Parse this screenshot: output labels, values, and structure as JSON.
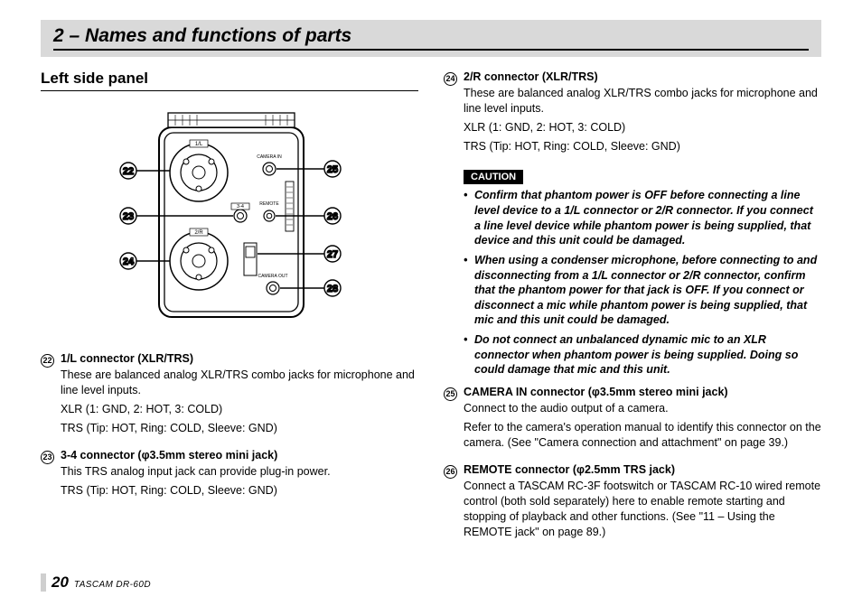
{
  "chapter_title": "2 – Names and functions of parts",
  "left_section_heading": "Left side panel",
  "diagram": {
    "callouts_left": [
      "22",
      "23",
      "24"
    ],
    "callouts_right": [
      "25",
      "26",
      "27",
      "28"
    ],
    "labels": {
      "top": "1/L",
      "mid1": "3-4",
      "mid2": "2/R",
      "camera_in": "CAMERA IN",
      "remote": "REMOTE",
      "camera_out": "CAMERA OUT"
    }
  },
  "left_items": [
    {
      "num": "22",
      "title": "1/L connector (XLR/TRS)",
      "paras": [
        "These are balanced analog XLR/TRS combo jacks for microphone and line level inputs.",
        "XLR (1: GND, 2: HOT, 3: COLD)",
        "TRS (Tip: HOT, Ring: COLD, Sleeve: GND)"
      ]
    },
    {
      "num": "23",
      "title": "3-4 connector (φ3.5mm stereo mini jack)",
      "paras": [
        "This TRS analog input jack can provide plug-in power.",
        "TRS (Tip: HOT, Ring: COLD, Sleeve: GND)"
      ]
    }
  ],
  "right_top_item": {
    "num": "24",
    "title": "2/R connector (XLR/TRS)",
    "paras": [
      "These are balanced analog XLR/TRS combo jacks for microphone and line level inputs.",
      "XLR (1: GND, 2: HOT, 3: COLD)",
      "TRS (Tip: HOT, Ring: COLD, Sleeve: GND)"
    ]
  },
  "caution_label": "CAUTION",
  "caution_items": [
    "Confirm that phantom power is OFF before connecting a line level device to a 1/L connector or 2/R connector. If you connect a line level device while phantom power is being supplied, that device and this unit could be damaged.",
    "When using a condenser microphone, before connecting to and disconnecting from a 1/L connector or 2/R connector, confirm that the phantom power for that jack is OFF. If you connect or disconnect a mic while phantom power is being supplied, that mic and this unit could be damaged.",
    "Do not connect an unbalanced dynamic mic to an XLR connector when phantom power is being supplied. Doing so could damage that mic and this unit."
  ],
  "right_bottom_items": [
    {
      "num": "25",
      "title": "CAMERA IN connector (φ3.5mm stereo mini jack)",
      "paras": [
        "Connect to the audio output of a camera.",
        "Refer to the camera's operation manual to identify this connector on the camera. (See \"Camera connection and attachment\" on page 39.)"
      ]
    },
    {
      "num": "26",
      "title": "REMOTE connector (φ2.5mm TRS jack)",
      "paras": [
        "Connect a TASCAM RC-3F footswitch or TASCAM RC-10 wired remote control (both sold separately) here to enable remote starting and stopping of playback and other functions. (See \"11 – Using the REMOTE jack\" on page 89.)"
      ]
    }
  ],
  "footer": {
    "page": "20",
    "model": "TASCAM  DR-60D"
  }
}
